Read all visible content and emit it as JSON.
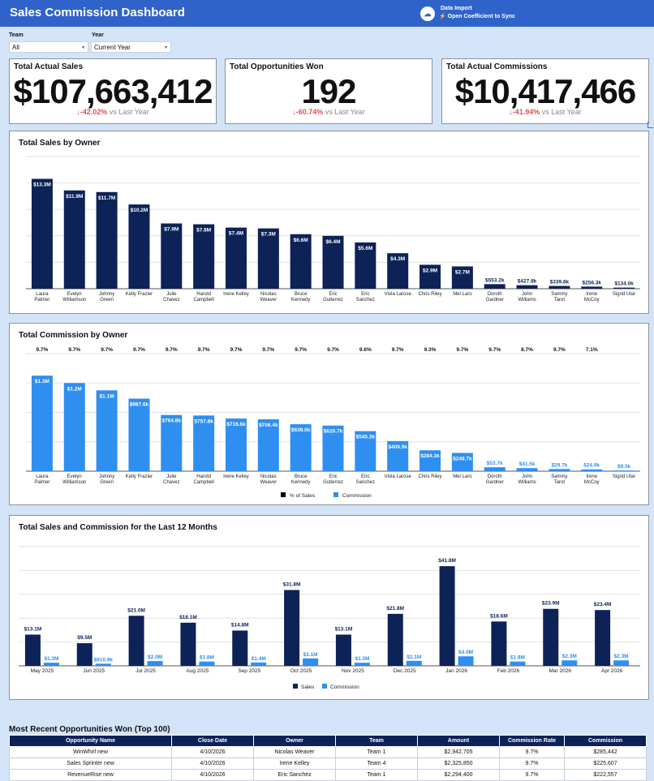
{
  "header": {
    "title": "Sales Commission Dashboard",
    "import_title": "Data Import",
    "import_subtitle": "⚡ Open Coefficient to Sync",
    "salesforce_icon": "salesforce-cloud-icon"
  },
  "filters": {
    "team_label": "Team",
    "team_value": "All",
    "year_label": "Year",
    "year_value": "Current Year"
  },
  "kpis": [
    {
      "label": "Total Actual Sales",
      "value": "$107,663,412",
      "change": "-42.02%",
      "vs": "vs Last Year"
    },
    {
      "label": "Total Opportunities Won",
      "value": "192",
      "change": "-60.74%",
      "vs": "vs Last Year"
    },
    {
      "label": "Total Actual Commissions",
      "value": "$10,417,466",
      "change": "-41.94%",
      "vs": "vs Last Year"
    }
  ],
  "colors": {
    "navy": "#0d2257",
    "blue": "#2e8ff0",
    "negative": "#e05050"
  },
  "chart_data": [
    {
      "type": "bar",
      "title": "Total Sales by Owner",
      "categories": [
        "Laura Palmer",
        "Evelyn Williamson",
        "Johnny Green",
        "Kelly Frazier",
        "Julie Chavez",
        "Harold Campbell",
        "Irene Kelley",
        "Nicolas Weaver",
        "Bruce Kennedy",
        "Eric Gutierrez",
        "Eric Sanchez",
        "Viola Larose",
        "Chris Riley",
        "Mel Laro",
        "Doroth Gardner",
        "John Williams",
        "Sammy Tarot",
        "Irene McCoy",
        "Sigrid Utar"
      ],
      "values": [
        13.3,
        11.9,
        11.7,
        10.2,
        7.9,
        7.8,
        7.4,
        7.3,
        6.6,
        6.4,
        5.6,
        4.3,
        2.9,
        2.7,
        0.5532,
        0.4278,
        0.3398,
        0.2563,
        0.134
      ],
      "labels": [
        "$13.3M",
        "$11.9M",
        "$11.7M",
        "$10.2M",
        "$7.9M",
        "$7.8M",
        "$7.4M",
        "$7.3M",
        "$6.6M",
        "$6.4M",
        "$5.6M",
        "$4.3M",
        "$2.9M",
        "$2.7M",
        "$553.2k",
        "$427.8k",
        "$339.8k",
        "$256.3k",
        "$134.0k"
      ],
      "unit": "$M",
      "ylim": [
        0,
        16
      ],
      "grid": true
    },
    {
      "type": "bar",
      "title": "Total Commission by Owner",
      "categories": [
        "Laura Palmer",
        "Evelyn Williamson",
        "Johnny Green",
        "Kelly Frazier",
        "Julie Chavez",
        "Harold Campbell",
        "Irene Kelley",
        "Nicolas Weaver",
        "Bruce Kennedy",
        "Eric Gutierrez",
        "Eric Sanchez",
        "Viola Larose",
        "Chris Riley",
        "Mel Laro",
        "Doroth Gardner",
        "John Williams",
        "Sammy Tarot",
        "Irene McCoy",
        "Sigrid Utar"
      ],
      "series": [
        {
          "name": "% of Sales",
          "values": [
            9.7,
            9.7,
            9.7,
            9.7,
            9.7,
            9.7,
            9.7,
            9.7,
            9.7,
            9.7,
            9.6,
            9.7,
            9.3,
            9.7,
            9.7,
            8.7,
            9.7,
            7.1,
            0
          ],
          "labels": [
            "9.7%",
            "9.7%",
            "9.7%",
            "9.7%",
            "9.7%",
            "9.7%",
            "9.7%",
            "9.7%",
            "9.7%",
            "9.7%",
            "9.6%",
            "9.7%",
            "9.3%",
            "9.7%",
            "9.7%",
            "8.7%",
            "9.7%",
            "7.1%",
            ""
          ]
        },
        {
          "name": "Commission",
          "values": [
            1.3,
            1.2,
            1.1,
            0.9876,
            0.7648,
            0.7578,
            0.7166,
            0.7064,
            0.639,
            0.6207,
            0.5453,
            0.4099,
            0.2843,
            0.2487,
            0.0537,
            0.0415,
            0.0297,
            0.0249,
            0.0095
          ],
          "labels": [
            "$1.3M",
            "$1.2M",
            "$1.1M",
            "$987.6k",
            "$764.8k",
            "$757.8k",
            "$716.6k",
            "$706.4k",
            "$639.0k",
            "$620.7k",
            "$545.3k",
            "$409.9k",
            "$284.3k",
            "$248.7k",
            "$53.7k",
            "$41.5k",
            "$29.7k",
            "$24.9k",
            "$9.5k"
          ]
        }
      ],
      "unit": "$M",
      "ylim": [
        0,
        1.6
      ],
      "grid": true,
      "legend": "bottom"
    },
    {
      "type": "bar",
      "title": "Total Sales and Commission for the Last 12 Months",
      "categories": [
        "May 2025",
        "Jun 2025",
        "Jul 2025",
        "Aug 2025",
        "Sep 2025",
        "Oct 2025",
        "Nov 2025",
        "Dec 2025",
        "Jan 2026",
        "Feb 2026",
        "Mar 2026",
        "Apr 2026"
      ],
      "series": [
        {
          "name": "Sales",
          "values": [
            13.1,
            9.5,
            21.0,
            18.1,
            14.8,
            31.8,
            13.1,
            21.8,
            41.8,
            18.6,
            23.9,
            23.4
          ],
          "labels": [
            "$13.1M",
            "$9.5M",
            "$21.0M",
            "$18.1M",
            "$14.8M",
            "$31.8M",
            "$13.1M",
            "$21.8M",
            "$41.8M",
            "$18.6M",
            "$23.9M",
            "$23.4M"
          ]
        },
        {
          "name": "Commission",
          "values": [
            1.3,
            0.9109,
            2.0,
            1.8,
            1.4,
            3.1,
            1.3,
            2.1,
            4.0,
            1.8,
            2.3,
            2.3
          ],
          "labels": [
            "$1.3M",
            "$910.9k",
            "$2.0M",
            "$1.8M",
            "$1.4M",
            "$3.1M",
            "$1.3M",
            "$2.1M",
            "$4.0M",
            "$1.8M",
            "$2.3M",
            "$2.3M"
          ]
        }
      ],
      "unit": "$M",
      "ylim": [
        0,
        50
      ],
      "grid": true,
      "legend": "bottom"
    }
  ],
  "table": {
    "title": "Most Recent Opportunities Won (Top 100)",
    "columns": [
      "Opportunity Name",
      "Close Date",
      "Owner",
      "Team",
      "Amount",
      "Commission Rate",
      "Commission"
    ],
    "rows": [
      [
        "WinWhirl new",
        "4/10/2026",
        "Nicolas Weaver",
        "Team 1",
        "$2,942,705",
        "9.7%",
        "$285,442"
      ],
      [
        "Sales Sprinter new",
        "4/10/2026",
        "Irene Kelley",
        "Team 4",
        "$2,325,850",
        "9.7%",
        "$225,607"
      ],
      [
        "RevenueRise new",
        "4/10/2026",
        "Eric Sanchez",
        "Team 1",
        "$2,294,400",
        "9.7%",
        "$222,557"
      ]
    ]
  }
}
